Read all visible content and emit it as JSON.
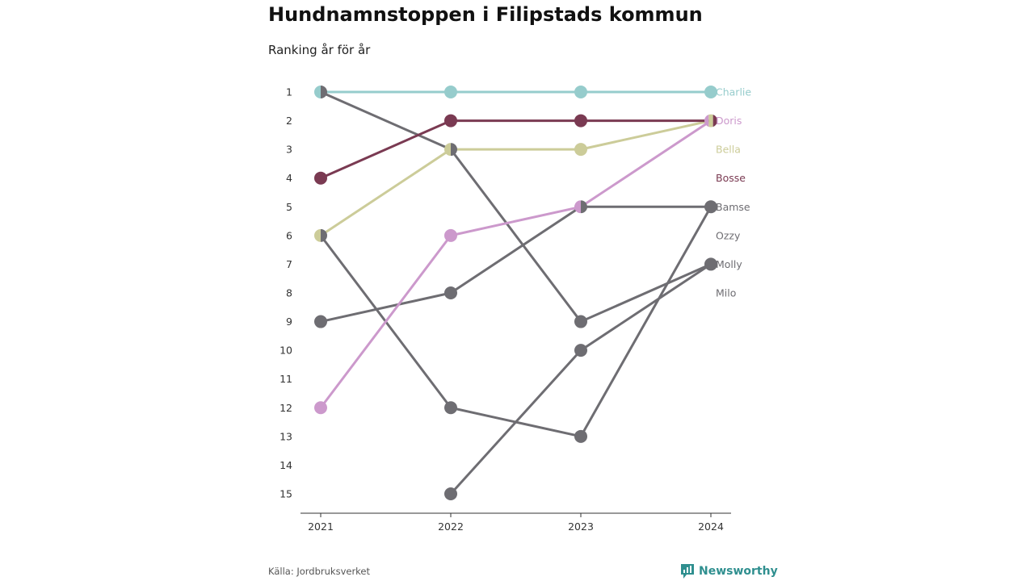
{
  "header": {
    "title": "Hundnamnstoppen i Filipstads kommun",
    "subtitle": "Ranking år för år"
  },
  "footer": {
    "source": "Källa: Jordbruksverket",
    "brand": "Newsworthy"
  },
  "colors": {
    "grey": "#6e6d72",
    "axis": "#333333",
    "brand": "#2f8f8f"
  },
  "chart_data": {
    "type": "line",
    "x": [
      "2021",
      "2022",
      "2023",
      "2024"
    ],
    "y_ticks": [
      1,
      2,
      3,
      4,
      5,
      6,
      7,
      8,
      9,
      10,
      11,
      12,
      13,
      14,
      15
    ],
    "ylim": [
      1,
      15
    ],
    "y_inverted": true,
    "grid": false,
    "series": [
      {
        "name": "Charlie",
        "color": "#96cccc",
        "values": [
          1,
          1,
          1,
          1
        ]
      },
      {
        "name": "Doris",
        "color": "#cc99cc",
        "values": [
          12,
          6,
          5,
          2
        ]
      },
      {
        "name": "Bella",
        "color": "#cccc99",
        "values": [
          6,
          3,
          3,
          2
        ]
      },
      {
        "name": "Bosse",
        "color": "#7a3a52",
        "values": [
          4,
          2,
          2,
          2
        ]
      },
      {
        "name": "Bamse",
        "color": "#6e6d72",
        "values": [
          9,
          8,
          5,
          5
        ]
      },
      {
        "name": "Ozzy",
        "color": "#6e6d72",
        "values": [
          1,
          3,
          9,
          7
        ]
      },
      {
        "name": "Molly",
        "color": "#6e6d72",
        "values": [
          null,
          15,
          10,
          7
        ]
      },
      {
        "name": "Milo",
        "color": "#6e6d72",
        "values": [
          6,
          12,
          13,
          5
        ]
      }
    ],
    "end_labels": [
      "Charlie",
      "Doris",
      "Bella",
      "Bosse",
      "Bamse",
      "Ozzy",
      "Molly",
      "Milo"
    ]
  }
}
